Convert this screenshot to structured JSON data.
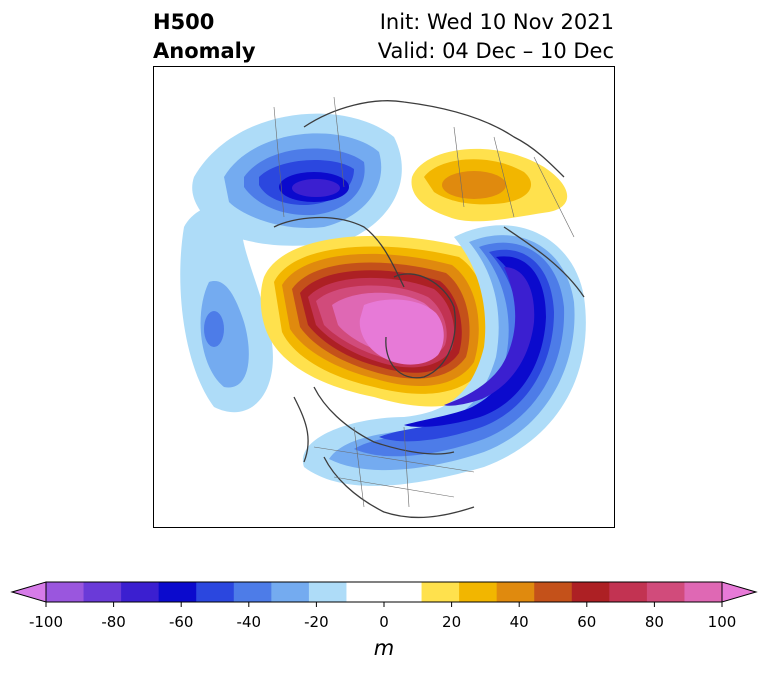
{
  "title": {
    "left_line1": "H500",
    "left_line2": "Anomaly",
    "right_line1": "Init: Wed 10 Nov 2021",
    "right_line2": "Valid: 04 Dec – 10 Dec"
  },
  "colorbar": {
    "unit": "m",
    "ticks": [
      "-100",
      "-80",
      "-60",
      "-40",
      "-20",
      "0",
      "20",
      "40",
      "60",
      "80",
      "100"
    ],
    "range": [
      -100,
      100
    ],
    "colors": [
      "#d67be8",
      "#9a56de",
      "#6a3ad8",
      "#3b1fd0",
      "#0b0acd",
      "#2b47df",
      "#4d7ce8",
      "#74abf0",
      "#aedcf8",
      "#ffffff",
      "#ffffff",
      "#ffe14d",
      "#f2b600",
      "#e08a0e",
      "#c4511a",
      "#ad2024",
      "#c23352",
      "#d14b7b",
      "#df68b4",
      "#e77ad7"
    ]
  },
  "map": {
    "projection": "north polar stereographic",
    "field": "500 hPa geopotential height anomaly"
  }
}
